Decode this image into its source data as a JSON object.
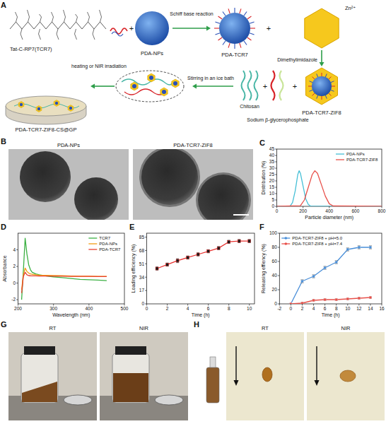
{
  "panel_letters": [
    "A",
    "B",
    "C",
    "D",
    "E",
    "F",
    "G",
    "H"
  ],
  "schematic": {
    "peptide": "Tat-C-RP7(TCR7)",
    "nanoparticle": "PDA-NPs",
    "step_1": "Schiff base reaction",
    "conjugate": "PDA-TCR7",
    "metal_ion": "Zn²⁺",
    "step_2": "Dimethylimidazole",
    "coated": "PDA-TCR7-ZIF8",
    "polymer": "Chitosan",
    "salt": "Sodium β-glycerophosphate",
    "step_3": "Stirring in an ice bath",
    "step_4": "heating or NIR irradiation",
    "hydrogel": "PDA-TCR7-ZIF8-CS@GP",
    "plus": "+"
  },
  "tem": {
    "titles": [
      "PDA-NPs",
      "PDA-TCR7-ZIF8"
    ]
  },
  "photos": {
    "G": [
      "RT",
      "NIR"
    ],
    "H": [
      "RT",
      "NIR"
    ]
  },
  "chart_data": [
    {
      "type": "line",
      "xlabel": "Particle diameter (nm)",
      "ylabel": "Distribution (%)",
      "xlim": [
        0,
        800
      ],
      "xticks": [
        0,
        200,
        400,
        600,
        800
      ],
      "ylim": [
        0,
        45
      ],
      "yticks": [
        0,
        5,
        10,
        15,
        20,
        25,
        30,
        35,
        40,
        45
      ],
      "legend": "upper right",
      "series": [
        {
          "name": "PDA-NPs",
          "color": "#45bfd6",
          "marker": "none",
          "x": [
            0,
            100,
            120,
            140,
            160,
            170,
            180,
            200,
            220,
            240,
            260,
            800
          ],
          "values": [
            0,
            0,
            3,
            12,
            25,
            28,
            26,
            16,
            6,
            1.5,
            0,
            0
          ]
        },
        {
          "name": "PDA-TCR7-ZIF8",
          "color": "#e8504a",
          "marker": "none",
          "x": [
            0,
            180,
            210,
            240,
            270,
            290,
            310,
            340,
            370,
            400,
            430,
            800
          ],
          "values": [
            0,
            0.5,
            5,
            15,
            25,
            28,
            26,
            17,
            8,
            2,
            0.3,
            0
          ]
        }
      ]
    },
    {
      "type": "line",
      "xlabel": "Wavelength (nm)",
      "ylabel": "Absorbance",
      "xlim": [
        200,
        500
      ],
      "xticks": [
        200,
        300,
        400,
        500
      ],
      "ylim": [
        -2.5,
        6
      ],
      "yticks": [
        -2,
        0,
        2,
        4
      ],
      "legend": "upper right",
      "x": [
        210,
        215,
        220,
        225,
        230,
        235,
        240,
        250,
        260,
        280,
        300,
        325,
        350,
        375,
        400,
        425,
        450
      ],
      "series": [
        {
          "name": "TCR7",
          "color": "#3cb043",
          "marker": "none",
          "values": [
            -2.0,
            1.5,
            5.4,
            3.5,
            2.2,
            1.6,
            1.3,
            1.1,
            1.0,
            0.85,
            0.75,
            0.65,
            0.55,
            0.45,
            0.4,
            0.35,
            0.3
          ]
        },
        {
          "name": "PDA-NPs",
          "color": "#f39c12",
          "marker": "none",
          "values": [
            -0.8,
            1.0,
            1.8,
            1.4,
            1.2,
            1.1,
            1.05,
            1.0,
            0.95,
            0.92,
            0.9,
            0.88,
            0.85,
            0.83,
            0.82,
            0.81,
            0.8
          ]
        },
        {
          "name": "PDA-TCR7",
          "color": "#e8402f",
          "marker": "none",
          "values": [
            -1.2,
            0.8,
            1.3,
            1.0,
            0.9,
            0.88,
            0.87,
            0.86,
            0.85,
            0.84,
            0.83,
            0.82,
            0.81,
            0.8,
            0.8,
            0.79,
            0.78
          ]
        }
      ]
    },
    {
      "type": "line",
      "xlabel": "Time (h)",
      "ylabel": "Loading efficiency (%)",
      "xlim": [
        0,
        10.5
      ],
      "xticks": [
        0,
        2,
        4,
        6,
        8,
        10
      ],
      "ylim": [
        0,
        90
      ],
      "yticks": [
        0,
        17,
        34,
        51,
        68,
        85
      ],
      "x": [
        1,
        2,
        3,
        4,
        5,
        6,
        7,
        8,
        9,
        10
      ],
      "series": [
        {
          "color": "#e8312f",
          "marker": "square",
          "values": [
            45,
            50,
            55,
            59,
            63,
            67,
            71,
            79,
            80,
            80
          ],
          "errors": [
            2,
            2,
            2.5,
            2,
            2,
            2,
            2,
            2,
            2,
            2
          ]
        }
      ]
    },
    {
      "type": "line",
      "xlabel": "Time (h)",
      "ylabel": "Releasing effiency (%)",
      "xlim": [
        -2,
        16
      ],
      "xticks": [
        -2,
        0,
        2,
        4,
        6,
        8,
        10,
        12,
        14,
        16
      ],
      "ylim": [
        0,
        100
      ],
      "yticks": [
        0,
        20,
        40,
        60,
        80,
        100
      ],
      "legend": "upper left",
      "x": [
        0,
        2,
        4,
        6,
        8,
        10,
        12,
        14
      ],
      "series": [
        {
          "name": "PDA-TCR7-ZIF8 + pH=5.0",
          "color": "#4a8fd9",
          "marker": "circle",
          "values": [
            0,
            32,
            39,
            51,
            59,
            77,
            80,
            80
          ],
          "errors": [
            0,
            2,
            2,
            2,
            2,
            2,
            2,
            2
          ]
        },
        {
          "name": "PDA-TCR7-ZIF8 + pH=7.4",
          "color": "#e8504a",
          "marker": "circle",
          "values": [
            0,
            1,
            5,
            6,
            6,
            7,
            8,
            9
          ],
          "errors": [
            0,
            1,
            1,
            1,
            1,
            1,
            1,
            1
          ]
        }
      ]
    }
  ]
}
